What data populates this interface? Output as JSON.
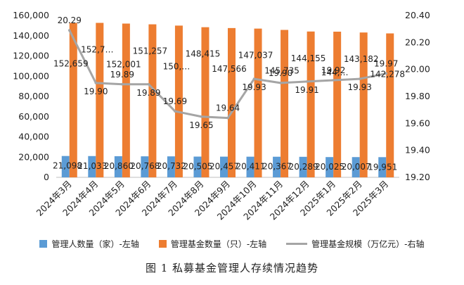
{
  "chart_data": {
    "type": "bar",
    "categories": [
      "2024年3月",
      "2024年4月",
      "2024年5月",
      "2024年6月",
      "2024年7月",
      "2024年8月",
      "2024年9月",
      "2024年10月",
      "2024年11月",
      "2024年12月",
      "2025年1月",
      "2025年2月",
      "2025年3月"
    ],
    "series": [
      {
        "name": "管理人数量（家）-左轴",
        "type": "bar",
        "axis": "left",
        "color": "#5B9BD5",
        "values": [
          21098,
          21033,
          20860,
          20768,
          20732,
          20505,
          20457,
          20411,
          20367,
          20289,
          20025,
          20007,
          19951
        ],
        "labels": [
          "21,098",
          "21,033",
          "20,860",
          "20,768",
          "20,732",
          "20,505",
          "20,457",
          "20,411",
          "20,367",
          "20,289",
          "20,025",
          "20,007",
          "19,951"
        ]
      },
      {
        "name": "管理基金数量（只）-左轴",
        "type": "bar",
        "axis": "left",
        "color": "#ED7D31",
        "values": [
          152659,
          152700,
          152001,
          151257,
          150000,
          148415,
          147566,
          147037,
          145735,
          144155,
          144000,
          143182,
          142278
        ],
        "labels": [
          "152,659",
          "152,7…",
          "152,001",
          "151,257",
          "150,…",
          "148,415",
          "147,566",
          "147,037",
          "145,735",
          "144,155",
          "144,…",
          "143,182",
          "142,278"
        ]
      },
      {
        "name": "管理基金规模（万亿元）-右轴",
        "type": "line",
        "axis": "right",
        "color": "#A5A5A5",
        "values": [
          20.29,
          19.9,
          19.89,
          19.89,
          19.69,
          19.65,
          19.64,
          19.93,
          19.9,
          19.91,
          19.92,
          19.93,
          19.97
        ],
        "labels": [
          "20.29",
          "19.90",
          "19.89",
          "19.89",
          "19.69",
          "19.65",
          "19.64",
          "19.93",
          "19.90",
          "19.91",
          "19.92",
          "19.93",
          "19.97"
        ]
      }
    ],
    "y_left": {
      "min": 0,
      "max": 160000,
      "step": 20000,
      "tick_labels": [
        "0",
        "20,000",
        "40,000",
        "60,000",
        "80,000",
        "100,000",
        "120,000",
        "140,000",
        "160,000"
      ]
    },
    "y_right": {
      "min": 19.2,
      "max": 20.4,
      "step": 0.2,
      "tick_labels": [
        "19.20",
        "19.40",
        "19.60",
        "19.80",
        "20.00",
        "20.20",
        "20.40"
      ]
    },
    "grid": false,
    "legend_position": "bottom",
    "caption": "图 1  私募基金管理人存续情况趋势"
  }
}
